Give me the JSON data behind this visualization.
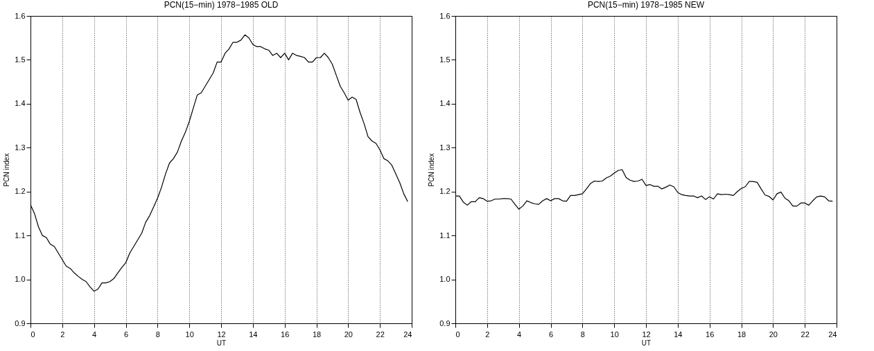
{
  "chart_data": [
    {
      "type": "line",
      "title": "PCN(15−min) 1978−1985 OLD",
      "xlabel": "UT",
      "ylabel": "PCN index",
      "xlim": [
        0,
        24
      ],
      "xticks": [
        0,
        2,
        4,
        6,
        8,
        10,
        12,
        14,
        16,
        18,
        20,
        22,
        24
      ],
      "ylim": [
        0.9,
        1.6
      ],
      "yticks": [
        0.9,
        {
          "value": 1,
          "label": "1.0"
        },
        1.1,
        1.2,
        1.3,
        1.4,
        1.5,
        1.6
      ],
      "grid": "x",
      "line_style": "solid",
      "x": [
        0,
        0.25,
        0.5,
        0.75,
        1,
        1.25,
        1.5,
        1.75,
        2,
        2.25,
        2.5,
        2.75,
        3,
        3.25,
        3.5,
        3.75,
        4,
        4.25,
        4.5,
        4.75,
        5,
        5.25,
        5.5,
        5.75,
        6,
        6.25,
        6.5,
        6.75,
        7,
        7.25,
        7.5,
        7.75,
        8,
        8.25,
        8.5,
        8.75,
        9,
        9.25,
        9.5,
        9.75,
        10,
        10.25,
        10.5,
        10.75,
        11,
        11.25,
        11.5,
        11.75,
        12,
        12.25,
        12.5,
        12.75,
        13,
        13.25,
        13.5,
        13.75,
        14,
        14.25,
        14.5,
        14.75,
        15,
        15.25,
        15.5,
        15.75,
        16,
        16.25,
        16.5,
        16.75,
        17,
        17.25,
        17.5,
        17.75,
        18,
        18.25,
        18.5,
        18.75,
        19,
        19.25,
        19.5,
        19.75,
        20,
        20.25,
        20.5,
        20.75,
        21,
        21.25,
        21.5,
        21.75,
        22,
        22.25,
        22.5,
        22.75,
        23,
        23.25,
        23.5,
        23.75
      ],
      "series": [
        {
          "color": "#000000",
          "values": [
            1.17,
            1.15,
            1.12,
            1.1,
            1.095,
            1.08,
            1.075,
            1.06,
            1.045,
            1.03,
            1.025,
            1.015,
            1.007,
            1.0,
            0.995,
            0.983,
            0.973,
            0.978,
            0.992,
            0.992,
            0.995,
            1.002,
            1.015,
            1.027,
            1.038,
            1.06,
            1.075,
            1.09,
            1.105,
            1.13,
            1.145,
            1.165,
            1.185,
            1.21,
            1.24,
            1.265,
            1.275,
            1.29,
            1.315,
            1.335,
            1.36,
            1.39,
            1.42,
            1.425,
            1.44,
            1.455,
            1.47,
            1.495,
            1.495,
            1.515,
            1.525,
            1.54,
            1.54,
            1.545,
            1.557,
            1.55,
            1.535,
            1.53,
            1.53,
            1.525,
            1.522,
            1.51,
            1.515,
            1.505,
            1.515,
            1.5,
            1.515,
            1.51,
            1.508,
            1.505,
            1.495,
            1.495,
            1.505,
            1.505,
            1.515,
            1.505,
            1.49,
            1.465,
            1.44,
            1.425,
            1.408,
            1.415,
            1.41,
            1.38,
            1.355,
            1.325,
            1.315,
            1.31,
            1.295,
            1.275,
            1.27,
            1.26,
            1.24,
            1.22,
            1.195,
            1.177
          ]
        }
      ]
    },
    {
      "type": "line",
      "title": "PCN(15−min) 1978−1985 NEW",
      "xlabel": "UT",
      "ylabel": "PCN index",
      "xlim": [
        0,
        24
      ],
      "xticks": [
        0,
        2,
        4,
        6,
        8,
        10,
        12,
        14,
        16,
        18,
        20,
        22,
        24
      ],
      "ylim": [
        0.9,
        1.6
      ],
      "yticks": [
        0.9,
        {
          "value": 1,
          "label": "1.0"
        },
        1.1,
        1.2,
        1.3,
        1.4,
        1.5,
        1.6
      ],
      "grid": "x",
      "line_style": "solid",
      "x": [
        0,
        0.25,
        0.5,
        0.75,
        1,
        1.25,
        1.5,
        1.75,
        2,
        2.25,
        2.5,
        2.75,
        3,
        3.25,
        3.5,
        3.75,
        4,
        4.25,
        4.5,
        4.75,
        5,
        5.25,
        5.5,
        5.75,
        6,
        6.25,
        6.5,
        6.75,
        7,
        7.25,
        7.5,
        7.75,
        8,
        8.25,
        8.5,
        8.75,
        9,
        9.25,
        9.5,
        9.75,
        10,
        10.25,
        10.5,
        10.75,
        11,
        11.25,
        11.5,
        11.75,
        12,
        12.25,
        12.5,
        12.75,
        13,
        13.25,
        13.5,
        13.75,
        14,
        14.25,
        14.5,
        14.75,
        15,
        15.25,
        15.5,
        15.75,
        16,
        16.25,
        16.5,
        16.75,
        17,
        17.25,
        17.5,
        17.75,
        18,
        18.25,
        18.5,
        18.75,
        19,
        19.25,
        19.5,
        19.75,
        20,
        20.25,
        20.5,
        20.75,
        21,
        21.25,
        21.5,
        21.75,
        22,
        22.25,
        22.5,
        22.75,
        23,
        23.25,
        23.5,
        23.75
      ],
      "series": [
        {
          "color": "#000000",
          "values": [
            1.19,
            1.19,
            1.176,
            1.169,
            1.177,
            1.177,
            1.186,
            1.184,
            1.178,
            1.179,
            1.183,
            1.183,
            1.184,
            1.184,
            1.183,
            1.171,
            1.16,
            1.167,
            1.179,
            1.175,
            1.172,
            1.171,
            1.179,
            1.184,
            1.179,
            1.184,
            1.184,
            1.179,
            1.178,
            1.191,
            1.191,
            1.193,
            1.195,
            1.206,
            1.218,
            1.224,
            1.223,
            1.224,
            1.231,
            1.235,
            1.242,
            1.248,
            1.25,
            1.232,
            1.226,
            1.223,
            1.224,
            1.228,
            1.214,
            1.216,
            1.212,
            1.212,
            1.206,
            1.21,
            1.215,
            1.211,
            1.198,
            1.193,
            1.191,
            1.19,
            1.19,
            1.186,
            1.19,
            1.182,
            1.188,
            1.183,
            1.195,
            1.193,
            1.194,
            1.193,
            1.191,
            1.2,
            1.207,
            1.211,
            1.223,
            1.223,
            1.221,
            1.206,
            1.192,
            1.189,
            1.181,
            1.195,
            1.199,
            1.185,
            1.179,
            1.167,
            1.167,
            1.174,
            1.174,
            1.169,
            1.179,
            1.188,
            1.19,
            1.188,
            1.179,
            1.178
          ]
        }
      ]
    }
  ]
}
